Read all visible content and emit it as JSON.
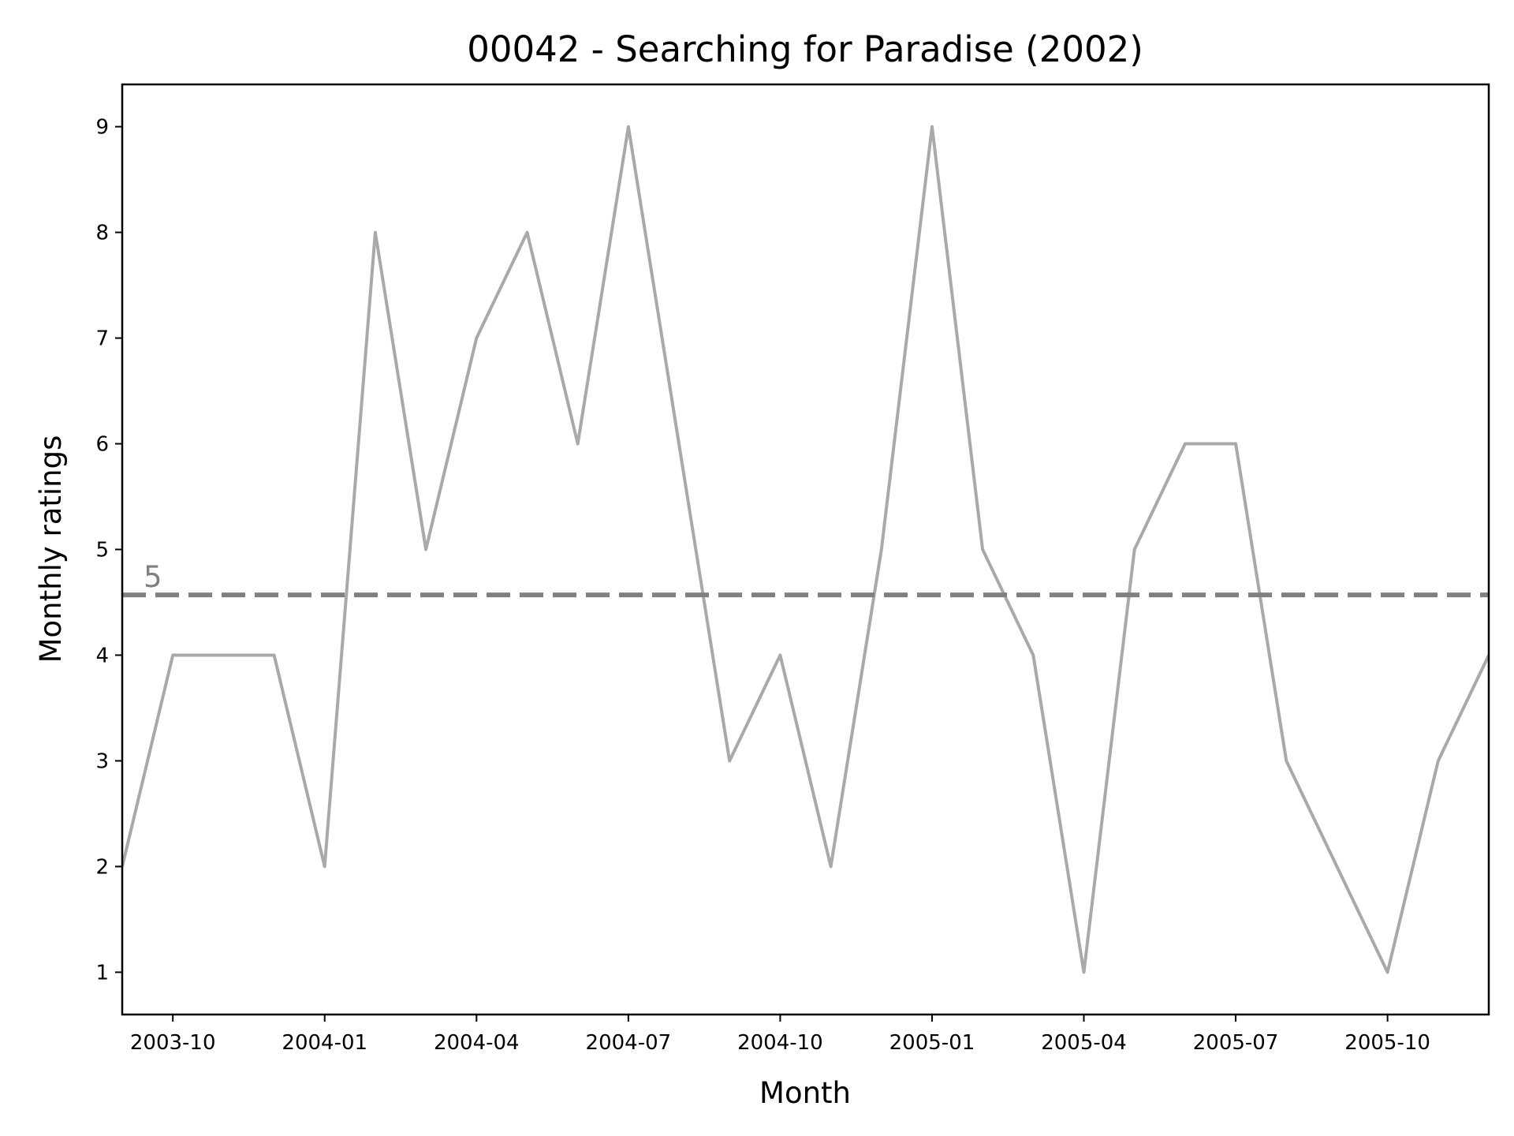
{
  "chart_data": {
    "type": "line",
    "title": "00042 - Searching for Paradise (2002)",
    "xlabel": "Month",
    "ylabel": "Monthly ratings",
    "x": [
      "2003-09",
      "2003-10",
      "2003-11",
      "2003-12",
      "2004-01",
      "2004-02",
      "2004-03",
      "2004-04",
      "2004-05",
      "2004-06",
      "2004-07",
      "2004-08",
      "2004-09",
      "2004-10",
      "2004-11",
      "2004-12",
      "2005-01",
      "2005-02",
      "2005-03",
      "2005-04",
      "2005-05",
      "2005-06",
      "2005-07",
      "2005-08",
      "2005-09",
      "2005-10",
      "2005-11",
      "2005-12"
    ],
    "series": [
      {
        "values": [
          2,
          4,
          4,
          4,
          2,
          8,
          5,
          7,
          8,
          6,
          9,
          6,
          3,
          4,
          2,
          5,
          9,
          5,
          4,
          1,
          5,
          6,
          6,
          3,
          2,
          1,
          3,
          4
        ],
        "color": "#a9a9a9"
      }
    ],
    "xlim": [
      "2003-09",
      "2005-12"
    ],
    "ylim": [
      0.6,
      9.4
    ],
    "xticks": [
      "2003-10",
      "2004-01",
      "2004-04",
      "2004-07",
      "2004-10",
      "2005-01",
      "2005-04",
      "2005-07",
      "2005-10"
    ],
    "yticks": [
      1,
      2,
      3,
      4,
      5,
      6,
      7,
      8,
      9
    ],
    "reference_line": {
      "value": 4.57,
      "label": "5",
      "style": "dashed",
      "color": "#808080"
    },
    "grid": false,
    "legend": "none"
  }
}
